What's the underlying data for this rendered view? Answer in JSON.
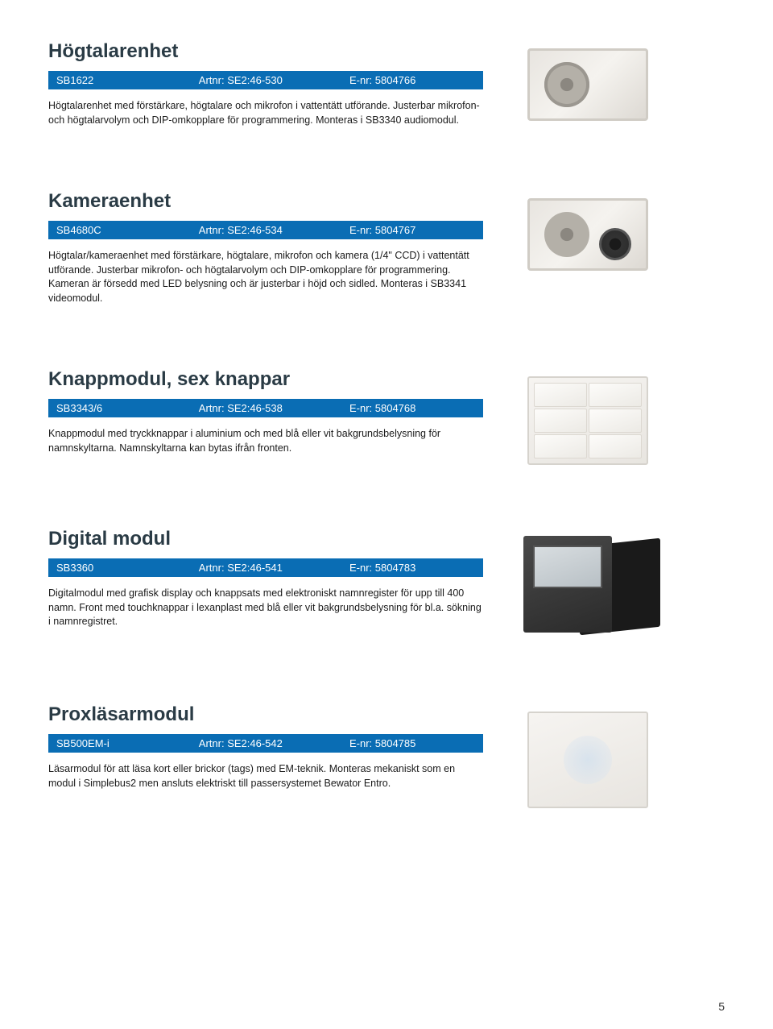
{
  "page_number": "5",
  "colors": {
    "bar_bg": "#0a6db4",
    "bar_text": "#ffffff",
    "title_color": "#2a3b45",
    "body_text": "#1a1a1a"
  },
  "products": [
    {
      "title": "Högtalarenhet",
      "sku": "SB1622",
      "artnr": "Artnr: SE2:46-530",
      "enr": "E-nr: 5804766",
      "desc": "Högtalarenhet med förstärkare, högtalare och mikrofon i vattentätt utförande. Justerbar mikrofon- och högtalarvolym och DIP-omkopplare för programmering. Monteras i SB3340 audiomodul.",
      "image_type": "speaker"
    },
    {
      "title": "Kameraenhet",
      "sku": "SB4680C",
      "artnr": "Artnr: SE2:46-534",
      "enr": "E-nr: 5804767",
      "desc": "Högtalar/kameraenhet med förstärkare, högtalare, mikrofon och kamera (1/4\" CCD) i vattentätt utförande. Justerbar mikrofon- och högtalarvolym och DIP-omkopplare för programmering. Kameran är försedd med LED belysning och är justerbar i höjd och sidled. Monteras i SB3341 videomodul.",
      "image_type": "camera"
    },
    {
      "title": "Knappmodul, sex knappar",
      "sku": "SB3343/6",
      "artnr": "Artnr: SE2:46-538",
      "enr": "E-nr: 5804768",
      "desc": "Knappmodul med tryckknappar i aluminium och med blå eller vit bakgrundsbelysning för namnskyltarna. Namnskyltarna kan bytas ifrån fronten.",
      "image_type": "knapp"
    },
    {
      "title": "Digital modul",
      "sku": "SB3360",
      "artnr": "Artnr: SE2:46-541",
      "enr": "E-nr: 5804783",
      "desc": "Digitalmodul med grafisk display och knappsats med elektroniskt namnregister för upp till 400 namn. Front med touchknappar i lexanplast med blå eller vit bakgrundsbelysning för bl.a. sökning i namnregistret.",
      "image_type": "digital"
    },
    {
      "title": "Proxläsarmodul",
      "sku": "SB500EM-i",
      "artnr": "Artnr: SE2:46-542",
      "enr": "E-nr: 5804785",
      "desc": "Läsarmodul för att läsa kort eller brickor (tags) med EM-teknik. Monteras mekaniskt som en modul i Simplebus2 men ansluts elektriskt till passersystemet Bewator Entro.",
      "image_type": "prox"
    }
  ]
}
